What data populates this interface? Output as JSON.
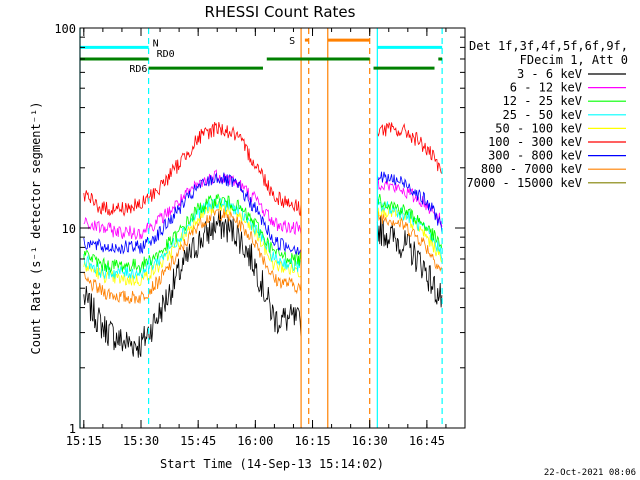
{
  "chart_data": {
    "type": "line",
    "title": "RHESSI Count Rates",
    "xlabel": "Start Time (14-Sep-13 15:14:02)",
    "ylabel": "Count Rate (s⁻¹ detector segment⁻¹)",
    "yscale": "log",
    "ylim": [
      1,
      100
    ],
    "xlim": [
      "15:14",
      "16:55"
    ],
    "x_ticks": [
      "15:15",
      "15:30",
      "15:45",
      "16:00",
      "16:15",
      "16:30",
      "16:45"
    ],
    "y_ticks": [
      "1",
      "10",
      "100"
    ],
    "legend_header": [
      "Det 1f,3f,4f,5f,6f,9f,",
      "FDecim 1, Att 0"
    ],
    "legend_placement": "right",
    "x": [
      "15:15",
      "15:20",
      "15:25",
      "15:30",
      "15:35",
      "15:40",
      "15:45",
      "15:50",
      "15:55",
      "16:00",
      "16:05",
      "16:10",
      "16:12",
      "16:32",
      "16:36",
      "16:40",
      "16:44",
      "16:47",
      "16:49"
    ],
    "series": [
      {
        "name": "3 - 6 keV",
        "color": "#000000",
        "values": [
          4.5,
          3.2,
          2.7,
          2.6,
          3.8,
          6.0,
          8.5,
          10.5,
          9.5,
          6.5,
          3.5,
          3.5,
          3.3,
          10.0,
          9.0,
          8.0,
          6.5,
          5.0,
          4.3
        ]
      },
      {
        "name": "6 - 12 keV",
        "color": "#ff00ff",
        "values": [
          10.5,
          10.0,
          9.5,
          9.5,
          11.0,
          13.5,
          16.5,
          18.5,
          17.0,
          14.0,
          10.5,
          10.0,
          9.8,
          17.0,
          16.0,
          15.0,
          13.5,
          12.0,
          10.5
        ]
      },
      {
        "name": "12 - 25 keV",
        "color": "#00ff00",
        "values": [
          7.5,
          6.5,
          6.5,
          6.5,
          7.5,
          9.5,
          12.5,
          14.0,
          13.0,
          10.5,
          7.5,
          7.0,
          7.0,
          14.0,
          13.0,
          12.0,
          10.5,
          9.0,
          8.0
        ]
      },
      {
        "name": "25 - 50 keV",
        "color": "#00ffff",
        "values": [
          7.0,
          6.0,
          6.0,
          6.0,
          7.0,
          9.0,
          12.0,
          13.5,
          12.5,
          10.0,
          7.0,
          6.5,
          6.5,
          13.0,
          12.5,
          11.5,
          10.0,
          8.5,
          7.5
        ]
      },
      {
        "name": "50 - 100 keV",
        "color": "#ffff00",
        "values": [
          6.5,
          5.8,
          5.5,
          5.5,
          6.5,
          8.5,
          11.5,
          13.0,
          12.0,
          9.5,
          6.5,
          6.2,
          6.0,
          12.5,
          12.0,
          11.0,
          9.5,
          8.0,
          7.0
        ]
      },
      {
        "name": "100 - 300 keV",
        "color": "#ff0000",
        "values": [
          14.5,
          12.5,
          12.5,
          13.0,
          16.0,
          21.0,
          28.0,
          32.0,
          29.0,
          21.0,
          14.5,
          13.0,
          12.5,
          31.0,
          31.0,
          30.0,
          26.0,
          22.0,
          18.0
        ]
      },
      {
        "name": "300 - 800 keV",
        "color": "#0000ff",
        "values": [
          8.5,
          8.0,
          8.0,
          8.0,
          9.5,
          12.5,
          16.0,
          18.0,
          16.5,
          12.5,
          8.5,
          8.0,
          7.8,
          18.0,
          17.5,
          16.5,
          14.0,
          12.0,
          10.0
        ]
      },
      {
        "name": "800 - 7000 keV",
        "color": "#ff8000",
        "values": [
          5.5,
          4.8,
          4.5,
          4.5,
          5.5,
          7.5,
          10.5,
          12.0,
          11.0,
          8.5,
          5.5,
          5.2,
          5.0,
          11.5,
          11.0,
          10.0,
          8.5,
          7.0,
          6.0
        ]
      },
      {
        "name": "7000 - 15000 keV",
        "color": "#808000",
        "values": [
          null,
          null,
          null,
          null,
          null,
          null,
          null,
          null,
          null,
          null,
          null,
          null,
          null,
          null,
          null,
          null,
          null,
          null,
          null
        ]
      }
    ],
    "annotations": {
      "vertical_lines": [
        {
          "x": "15:14",
          "color": "#00ffff",
          "style": "solid"
        },
        {
          "x": "15:32",
          "color": "#00ffff",
          "style": "dashed"
        },
        {
          "x": "16:12",
          "color": "#ff8000",
          "style": "solid"
        },
        {
          "x": "16:14",
          "color": "#ff8000",
          "style": "dashed"
        },
        {
          "x": "16:19",
          "color": "#ff8000",
          "style": "solid"
        },
        {
          "x": "16:30",
          "color": "#ff8000",
          "style": "dashed"
        },
        {
          "x": "16:32",
          "color": "#00ffff",
          "style": "solid"
        },
        {
          "x": "16:49",
          "color": "#00ffff",
          "style": "dashed"
        }
      ],
      "flag_bars": [
        {
          "label": "N",
          "color": "#00ffff",
          "y": 80,
          "segments": [
            [
              "15:14",
              "15:32"
            ],
            [
              "16:32",
              "16:49"
            ]
          ]
        },
        {
          "label": "RD0",
          "color": "#008000",
          "y": 70,
          "segments": [
            [
              "15:14",
              "15:32"
            ],
            [
              "16:03",
              "16:30"
            ],
            [
              "16:48",
              "16:49"
            ]
          ]
        },
        {
          "label": "RD6",
          "color": "#008000",
          "y": 63,
          "segments": [
            [
              "15:32",
              "16:02"
            ],
            [
              "16:31",
              "16:47"
            ]
          ]
        },
        {
          "label": "S",
          "color": "#ff8000",
          "y": 87,
          "segments": [
            [
              "16:13",
              "16:14"
            ],
            [
              "16:19",
              "16:30"
            ]
          ]
        }
      ]
    },
    "grid": false
  },
  "footer": {
    "timestamp": "22-Oct-2021 08:06"
  }
}
